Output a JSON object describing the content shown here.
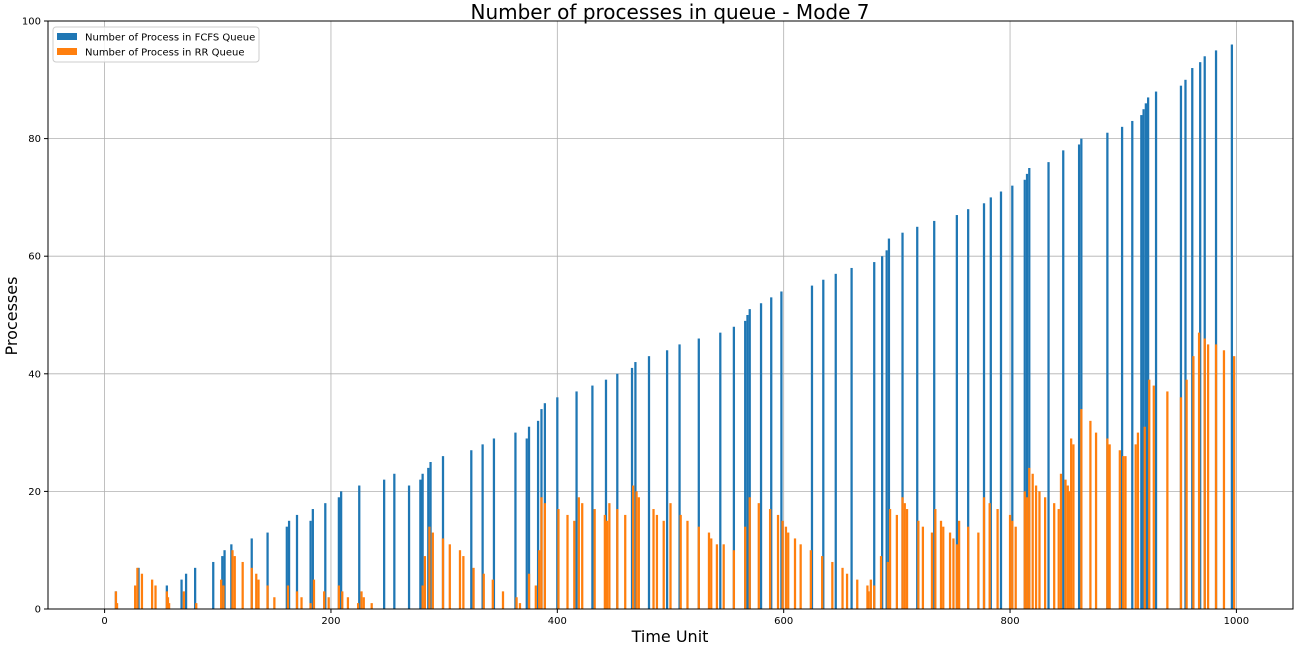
{
  "chart_data": {
    "type": "bar",
    "title": "Number of processes in queue - Mode 7",
    "xlabel": "Time Unit",
    "ylabel": "Processes",
    "xlim": [
      -50,
      1050
    ],
    "ylim": [
      0,
      100
    ],
    "xticks": [
      0,
      200,
      400,
      600,
      800,
      1000
    ],
    "yticks": [
      0,
      20,
      40,
      60,
      80,
      100
    ],
    "grid": true,
    "legend_position": "top-left",
    "series": [
      {
        "name": "Number of Process in FCFS Queue",
        "color": "#1f77b4",
        "points": [
          [
            10,
            3
          ],
          [
            30,
            7
          ],
          [
            55,
            4
          ],
          [
            68,
            5
          ],
          [
            72,
            6
          ],
          [
            80,
            7
          ],
          [
            96,
            8
          ],
          [
            104,
            9
          ],
          [
            106,
            10
          ],
          [
            112,
            11
          ],
          [
            130,
            12
          ],
          [
            144,
            13
          ],
          [
            161,
            14
          ],
          [
            163,
            15
          ],
          [
            170,
            16
          ],
          [
            182,
            15
          ],
          [
            184,
            17
          ],
          [
            195,
            18
          ],
          [
            207,
            19
          ],
          [
            209,
            20
          ],
          [
            225,
            21
          ],
          [
            247,
            22
          ],
          [
            256,
            23
          ],
          [
            269,
            21
          ],
          [
            279,
            22
          ],
          [
            281,
            23
          ],
          [
            286,
            24
          ],
          [
            288,
            25
          ],
          [
            299,
            26
          ],
          [
            324,
            27
          ],
          [
            334,
            28
          ],
          [
            344,
            29
          ],
          [
            363,
            30
          ],
          [
            373,
            29
          ],
          [
            375,
            31
          ],
          [
            383,
            32
          ],
          [
            386,
            34
          ],
          [
            389,
            35
          ],
          [
            400,
            36
          ],
          [
            417,
            37
          ],
          [
            431,
            38
          ],
          [
            443,
            39
          ],
          [
            453,
            40
          ],
          [
            466,
            41
          ],
          [
            469,
            42
          ],
          [
            481,
            43
          ],
          [
            497,
            44
          ],
          [
            508,
            45
          ],
          [
            525,
            46
          ],
          [
            544,
            47
          ],
          [
            556,
            48
          ],
          [
            566,
            49
          ],
          [
            568,
            50
          ],
          [
            570,
            51
          ],
          [
            580,
            52
          ],
          [
            589,
            53
          ],
          [
            598,
            54
          ],
          [
            625,
            55
          ],
          [
            635,
            56
          ],
          [
            646,
            57
          ],
          [
            660,
            58
          ],
          [
            680,
            59
          ],
          [
            687,
            60
          ],
          [
            691,
            61
          ],
          [
            693,
            63
          ],
          [
            705,
            64
          ],
          [
            718,
            65
          ],
          [
            733,
            66
          ],
          [
            753,
            67
          ],
          [
            763,
            68
          ],
          [
            777,
            69
          ],
          [
            783,
            70
          ],
          [
            792,
            71
          ],
          [
            802,
            72
          ],
          [
            813,
            73
          ],
          [
            815,
            74
          ],
          [
            817,
            75
          ],
          [
            834,
            76
          ],
          [
            847,
            78
          ],
          [
            861,
            79
          ],
          [
            863,
            80
          ],
          [
            886,
            81
          ],
          [
            899,
            82
          ],
          [
            908,
            83
          ],
          [
            916,
            84
          ],
          [
            918,
            85
          ],
          [
            920,
            86
          ],
          [
            922,
            87
          ],
          [
            929,
            88
          ],
          [
            951,
            89
          ],
          [
            955,
            90
          ],
          [
            961,
            92
          ],
          [
            968,
            93
          ],
          [
            972,
            94
          ],
          [
            982,
            95
          ],
          [
            996,
            96
          ]
        ]
      },
      {
        "name": "Number of Process in RR Queue",
        "color": "#ff7f0e",
        "points": [
          [
            10,
            3
          ],
          [
            11,
            1
          ],
          [
            27,
            4
          ],
          [
            29,
            7
          ],
          [
            33,
            6
          ],
          [
            42,
            5
          ],
          [
            45,
            4
          ],
          [
            55,
            3
          ],
          [
            56,
            2
          ],
          [
            57,
            1
          ],
          [
            70,
            3
          ],
          [
            81,
            1
          ],
          [
            103,
            5
          ],
          [
            105,
            4
          ],
          [
            113,
            10
          ],
          [
            115,
            9
          ],
          [
            122,
            8
          ],
          [
            130,
            7
          ],
          [
            134,
            6
          ],
          [
            136,
            5
          ],
          [
            144,
            4
          ],
          [
            150,
            2
          ],
          [
            162,
            4
          ],
          [
            170,
            3
          ],
          [
            174,
            2
          ],
          [
            182,
            1
          ],
          [
            185,
            5
          ],
          [
            194,
            3
          ],
          [
            198,
            2
          ],
          [
            207,
            4
          ],
          [
            210,
            3
          ],
          [
            215,
            2
          ],
          [
            224,
            1
          ],
          [
            227,
            3
          ],
          [
            229,
            2
          ],
          [
            236,
            1
          ],
          [
            281,
            4
          ],
          [
            283,
            9
          ],
          [
            287,
            14
          ],
          [
            290,
            13
          ],
          [
            299,
            12
          ],
          [
            305,
            11
          ],
          [
            314,
            10
          ],
          [
            317,
            9
          ],
          [
            326,
            7
          ],
          [
            335,
            6
          ],
          [
            343,
            5
          ],
          [
            352,
            3
          ],
          [
            364,
            2
          ],
          [
            367,
            1
          ],
          [
            375,
            6
          ],
          [
            381,
            4
          ],
          [
            384,
            10
          ],
          [
            386,
            19
          ],
          [
            389,
            18
          ],
          [
            401,
            17
          ],
          [
            409,
            16
          ],
          [
            415,
            15
          ],
          [
            419,
            19
          ],
          [
            422,
            18
          ],
          [
            433,
            17
          ],
          [
            442,
            16
          ],
          [
            444,
            15
          ],
          [
            446,
            18
          ],
          [
            453,
            17
          ],
          [
            460,
            16
          ],
          [
            467,
            21
          ],
          [
            470,
            20
          ],
          [
            472,
            19
          ],
          [
            485,
            17
          ],
          [
            488,
            16
          ],
          [
            494,
            15
          ],
          [
            500,
            18
          ],
          [
            509,
            16
          ],
          [
            515,
            15
          ],
          [
            525,
            14
          ],
          [
            534,
            13
          ],
          [
            536,
            12
          ],
          [
            541,
            11
          ],
          [
            547,
            11
          ],
          [
            556,
            10
          ],
          [
            566,
            14
          ],
          [
            570,
            19
          ],
          [
            578,
            18
          ],
          [
            588,
            17
          ],
          [
            595,
            16
          ],
          [
            599,
            15
          ],
          [
            602,
            14
          ],
          [
            604,
            13
          ],
          [
            610,
            12
          ],
          [
            615,
            11
          ],
          [
            624,
            10
          ],
          [
            634,
            9
          ],
          [
            643,
            8
          ],
          [
            652,
            7
          ],
          [
            656,
            6
          ],
          [
            665,
            5
          ],
          [
            674,
            4
          ],
          [
            675,
            3
          ],
          [
            677,
            5
          ],
          [
            680,
            4
          ],
          [
            686,
            9
          ],
          [
            692,
            8
          ],
          [
            694,
            17
          ],
          [
            700,
            16
          ],
          [
            705,
            19
          ],
          [
            707,
            18
          ],
          [
            709,
            17
          ],
          [
            719,
            15
          ],
          [
            723,
            14
          ],
          [
            731,
            13
          ],
          [
            734,
            17
          ],
          [
            739,
            15
          ],
          [
            741,
            14
          ],
          [
            747,
            13
          ],
          [
            750,
            12
          ],
          [
            753,
            11
          ],
          [
            755,
            15
          ],
          [
            763,
            14
          ],
          [
            772,
            13
          ],
          [
            777,
            19
          ],
          [
            782,
            18
          ],
          [
            789,
            17
          ],
          [
            800,
            16
          ],
          [
            802,
            15
          ],
          [
            805,
            14
          ],
          [
            813,
            20
          ],
          [
            815,
            19
          ],
          [
            817,
            24
          ],
          [
            820,
            23
          ],
          [
            823,
            21
          ],
          [
            826,
            20
          ],
          [
            831,
            19
          ],
          [
            839,
            18
          ],
          [
            843,
            17
          ],
          [
            845,
            23
          ],
          [
            849,
            22
          ],
          [
            851,
            21
          ],
          [
            852,
            20
          ],
          [
            854,
            29
          ],
          [
            856,
            28
          ],
          [
            863,
            34
          ],
          [
            871,
            32
          ],
          [
            876,
            30
          ],
          [
            886,
            29
          ],
          [
            888,
            28
          ],
          [
            897,
            27
          ],
          [
            900,
            26
          ],
          [
            902,
            26
          ],
          [
            911,
            28
          ],
          [
            913,
            30
          ],
          [
            919,
            31
          ],
          [
            923,
            39
          ],
          [
            927,
            38
          ],
          [
            939,
            37
          ],
          [
            951,
            36
          ],
          [
            956,
            39
          ],
          [
            962,
            43
          ],
          [
            967,
            47
          ],
          [
            972,
            46
          ],
          [
            975,
            45
          ],
          [
            982,
            45
          ],
          [
            989,
            44
          ],
          [
            998,
            43
          ]
        ]
      }
    ]
  }
}
